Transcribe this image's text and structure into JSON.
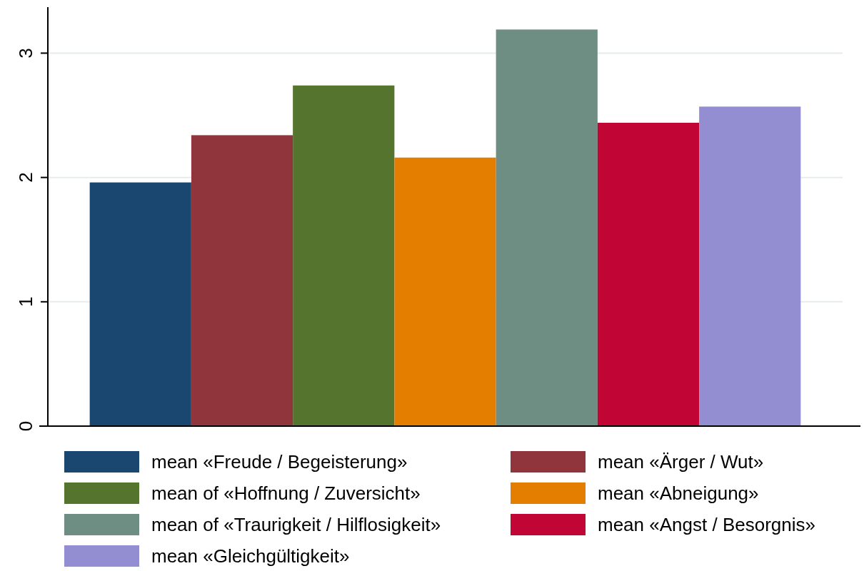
{
  "chart_data": {
    "type": "bar",
    "categories": [
      null
    ],
    "series": [
      {
        "name": "mean «Freude / Begeisterung»",
        "color": "#1a476f",
        "values": [
          1.96
        ]
      },
      {
        "name": "mean «Ärger / Wut»",
        "color": "#90353b",
        "values": [
          2.34
        ]
      },
      {
        "name": "mean of «Hoffnung / Zuversicht»",
        "color": "#55752f",
        "values": [
          2.74
        ]
      },
      {
        "name": "mean «Abneigung»",
        "color": "#e37e00",
        "values": [
          2.16
        ]
      },
      {
        "name": "mean of «Traurigkeit / Hilflosigkeit»",
        "color": "#6e8e84",
        "values": [
          3.19
        ]
      },
      {
        "name": "mean «Angst / Besorgnis»",
        "color": "#c10534",
        "values": [
          2.44
        ]
      },
      {
        "name": "mean «Gleichgültigkeit»",
        "color": "#938dd2",
        "values": [
          2.57
        ]
      }
    ],
    "ylim": [
      0,
      3.37
    ],
    "yticks": [
      0,
      1,
      2,
      3
    ],
    "grid": "y",
    "legend": "bottom"
  }
}
